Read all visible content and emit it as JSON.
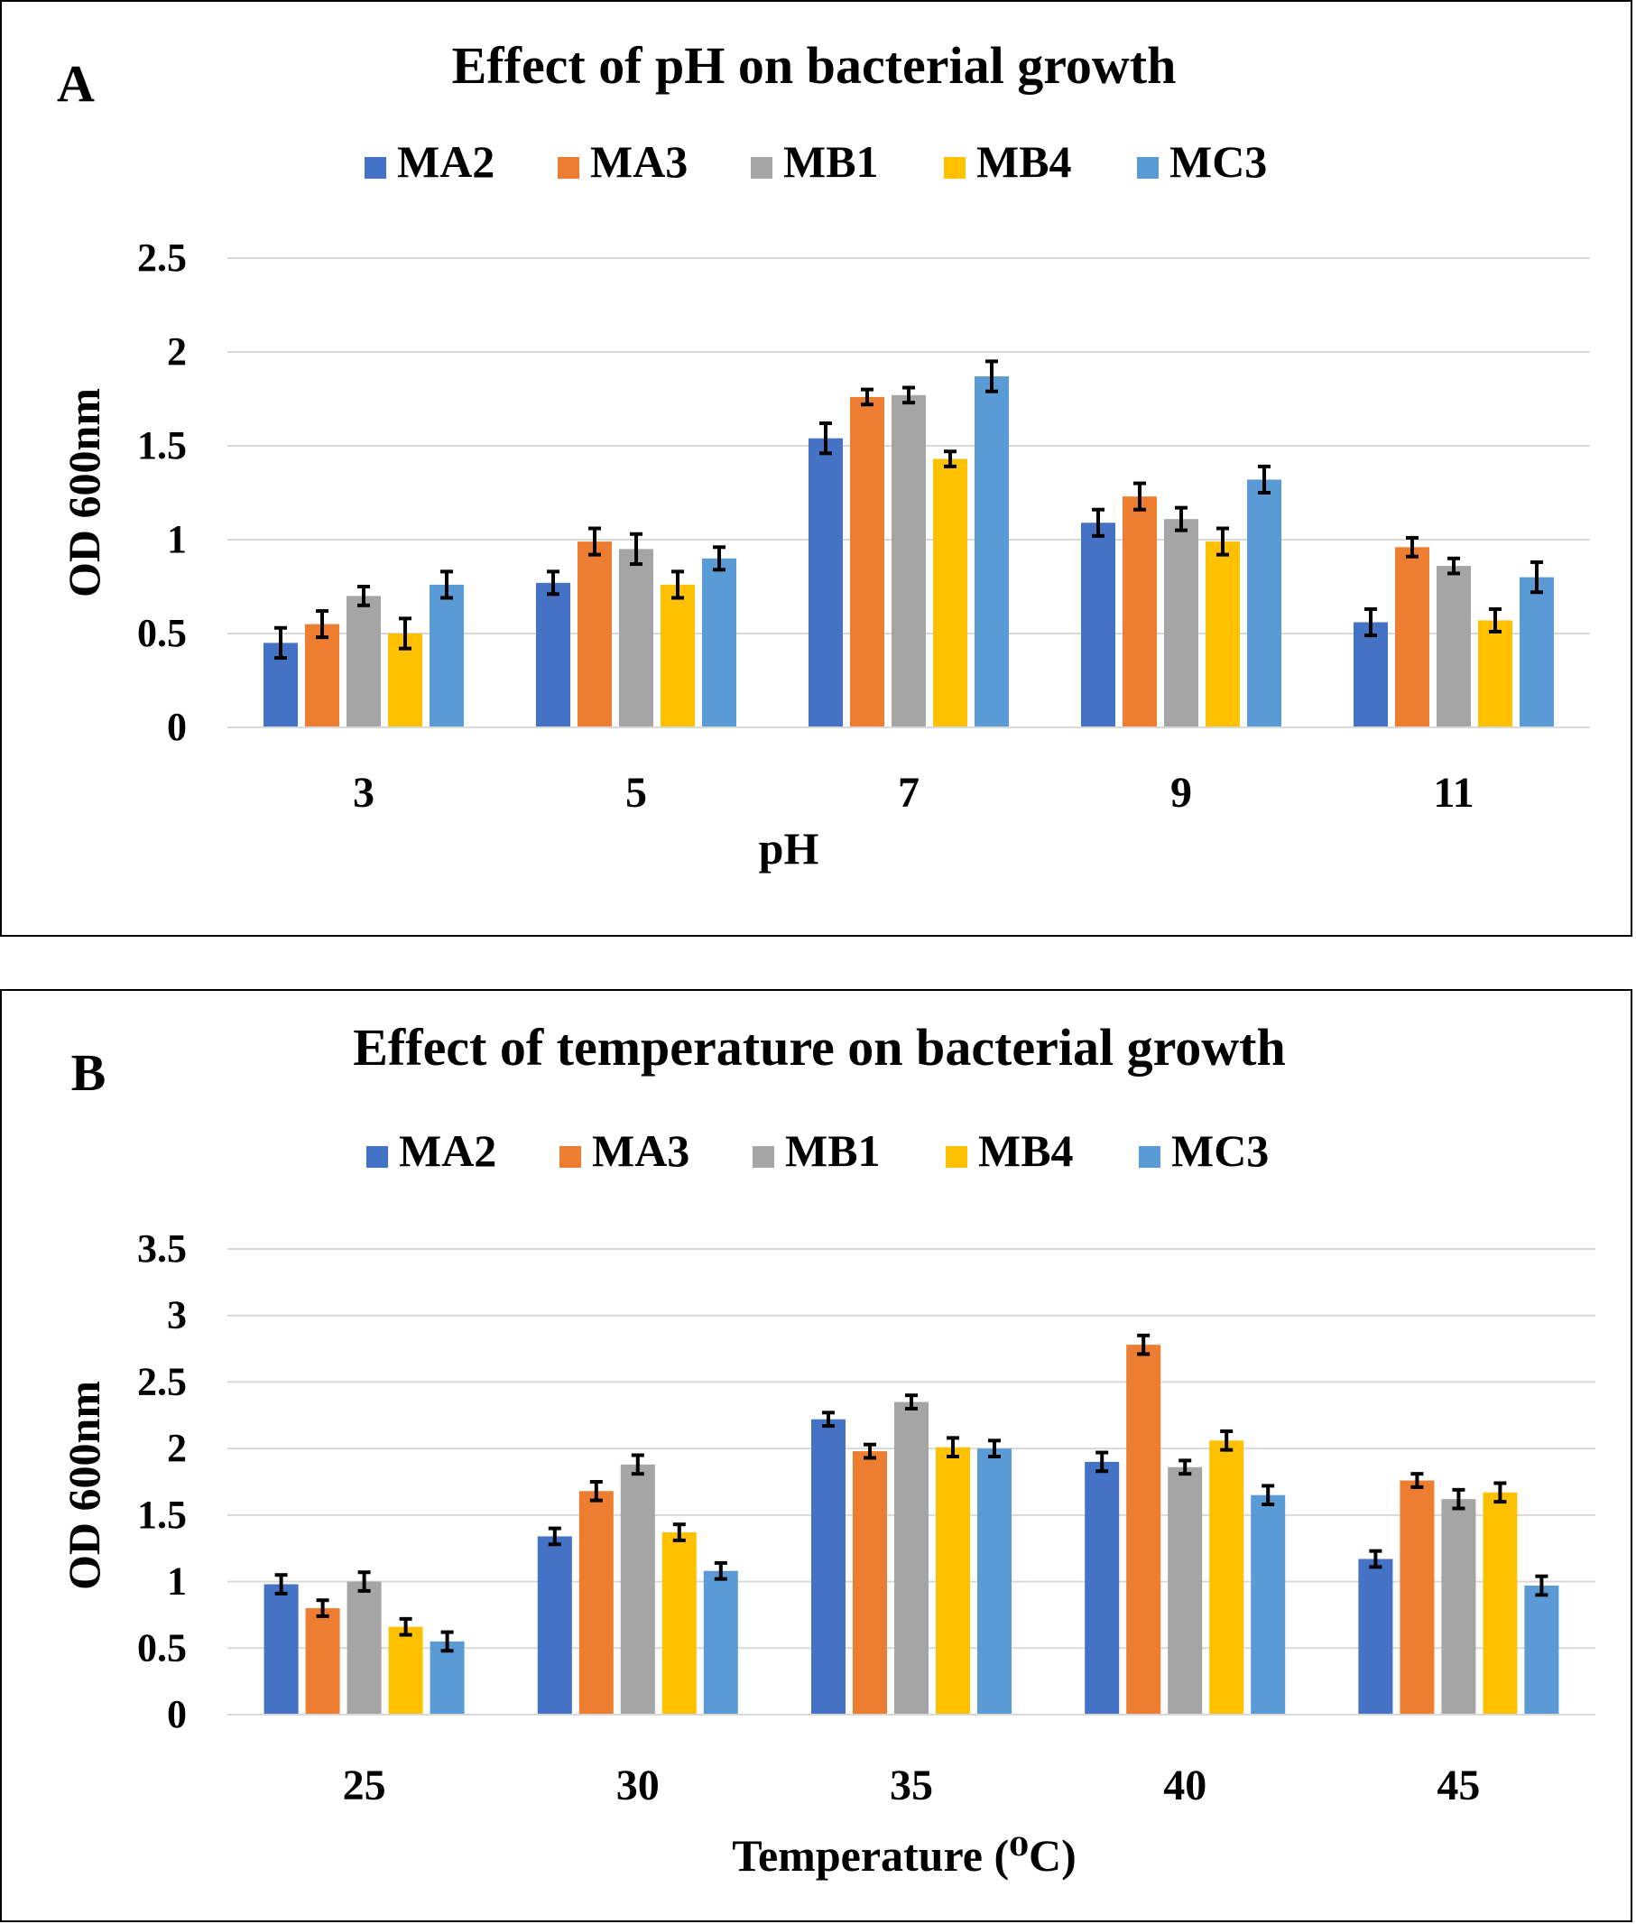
{
  "chart_data": [
    {
      "type": "bar",
      "panel_label": "A",
      "title": "Effect of pH on bacterial growth",
      "xlabel": "pH",
      "ylabel": "OD 600nm",
      "ylim": [
        0,
        2.5
      ],
      "yticks": [
        "0",
        "0.5",
        "1",
        "1.5",
        "2",
        "2.5"
      ],
      "categories": [
        "3",
        "5",
        "7",
        "9",
        "11"
      ],
      "legend_position": "top",
      "grid": true,
      "series": [
        {
          "name": "MA2",
          "color": "#4472C4",
          "values": [
            0.45,
            0.77,
            1.54,
            1.09,
            0.56
          ],
          "errors": [
            0.08,
            0.06,
            0.08,
            0.07,
            0.07
          ]
        },
        {
          "name": "MA3",
          "color": "#ED7D31",
          "values": [
            0.55,
            0.99,
            1.76,
            1.23,
            0.96
          ],
          "errors": [
            0.07,
            0.07,
            0.04,
            0.07,
            0.05
          ]
        },
        {
          "name": "MB1",
          "color": "#A5A5A5",
          "values": [
            0.7,
            0.95,
            1.77,
            1.11,
            0.86
          ],
          "errors": [
            0.05,
            0.08,
            0.04,
            0.06,
            0.04
          ]
        },
        {
          "name": "MB4",
          "color": "#FFC000",
          "values": [
            0.5,
            0.76,
            1.43,
            0.99,
            0.57
          ],
          "errors": [
            0.08,
            0.07,
            0.04,
            0.07,
            0.06
          ]
        },
        {
          "name": "MC3",
          "color": "#5B9BD5",
          "values": [
            0.76,
            0.9,
            1.87,
            1.32,
            0.8
          ],
          "errors": [
            0.07,
            0.06,
            0.08,
            0.07,
            0.08
          ]
        }
      ]
    },
    {
      "type": "bar",
      "panel_label": "B",
      "title": "Effect of temperature on bacterial growth",
      "xlabel": "Temperature (⁰C)",
      "ylabel": "OD 600nm",
      "ylim": [
        0,
        3.5
      ],
      "yticks": [
        "0",
        "0.5",
        "1",
        "1.5",
        "2",
        "2.5",
        "3",
        "3.5"
      ],
      "categories": [
        "25",
        "30",
        "35",
        "40",
        "45"
      ],
      "legend_position": "top",
      "grid": true,
      "series": [
        {
          "name": "MA2",
          "color": "#4472C4",
          "values": [
            0.98,
            1.34,
            2.22,
            1.9,
            1.17
          ],
          "errors": [
            0.07,
            0.06,
            0.05,
            0.07,
            0.06
          ]
        },
        {
          "name": "MA3",
          "color": "#ED7D31",
          "values": [
            0.8,
            1.68,
            1.98,
            2.78,
            1.76
          ],
          "errors": [
            0.06,
            0.07,
            0.05,
            0.07,
            0.05
          ]
        },
        {
          "name": "MB1",
          "color": "#A5A5A5",
          "values": [
            1.0,
            1.88,
            2.35,
            1.86,
            1.62
          ],
          "errors": [
            0.07,
            0.07,
            0.05,
            0.05,
            0.07
          ]
        },
        {
          "name": "MB4",
          "color": "#FFC000",
          "values": [
            0.66,
            1.37,
            2.01,
            2.06,
            1.67
          ],
          "errors": [
            0.06,
            0.06,
            0.07,
            0.07,
            0.07
          ]
        },
        {
          "name": "MC3",
          "color": "#5B9BD5",
          "values": [
            0.55,
            1.08,
            2.0,
            1.65,
            0.97
          ],
          "errors": [
            0.07,
            0.06,
            0.06,
            0.07,
            0.07
          ]
        }
      ]
    }
  ]
}
